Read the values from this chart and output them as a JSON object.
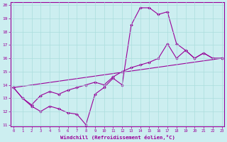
{
  "xlabel": "Windchill (Refroidissement éolien,°C)",
  "bg_color": "#cceef0",
  "line_color": "#990099",
  "grid_color": "#aadddd",
  "xmin": 0,
  "xmax": 23,
  "ymin": 11,
  "ymax": 20,
  "line1": [
    [
      0,
      13.8
    ],
    [
      1,
      13.0
    ],
    [
      2,
      12.4
    ],
    [
      3,
      12.0
    ],
    [
      4,
      12.4
    ],
    [
      5,
      12.2
    ],
    [
      6,
      11.9
    ],
    [
      7,
      11.8
    ],
    [
      8,
      11.0
    ],
    [
      9,
      13.3
    ],
    [
      10,
      13.8
    ],
    [
      11,
      14.5
    ],
    [
      12,
      14.0
    ],
    [
      13,
      18.5
    ],
    [
      14,
      19.8
    ],
    [
      15,
      19.8
    ],
    [
      16,
      19.3
    ],
    [
      17,
      19.5
    ],
    [
      18,
      17.1
    ],
    [
      19,
      16.6
    ],
    [
      20,
      16.0
    ],
    [
      21,
      16.4
    ],
    [
      22,
      16.0
    ],
    [
      23,
      16.0
    ]
  ],
  "line2": [
    [
      0,
      13.8
    ],
    [
      1,
      13.0
    ],
    [
      2,
      12.5
    ],
    [
      3,
      13.2
    ],
    [
      4,
      13.5
    ],
    [
      5,
      13.3
    ],
    [
      6,
      13.6
    ],
    [
      7,
      13.8
    ],
    [
      8,
      14.0
    ],
    [
      9,
      14.2
    ],
    [
      10,
      14.0
    ],
    [
      11,
      14.6
    ],
    [
      12,
      15.0
    ],
    [
      13,
      15.3
    ],
    [
      14,
      15.5
    ],
    [
      15,
      15.7
    ],
    [
      16,
      16.0
    ],
    [
      17,
      17.1
    ],
    [
      18,
      16.0
    ],
    [
      19,
      16.6
    ],
    [
      20,
      16.0
    ],
    [
      21,
      16.4
    ],
    [
      22,
      16.0
    ],
    [
      23,
      16.0
    ]
  ],
  "line3": [
    [
      0,
      13.8
    ],
    [
      23,
      16.0
    ]
  ]
}
